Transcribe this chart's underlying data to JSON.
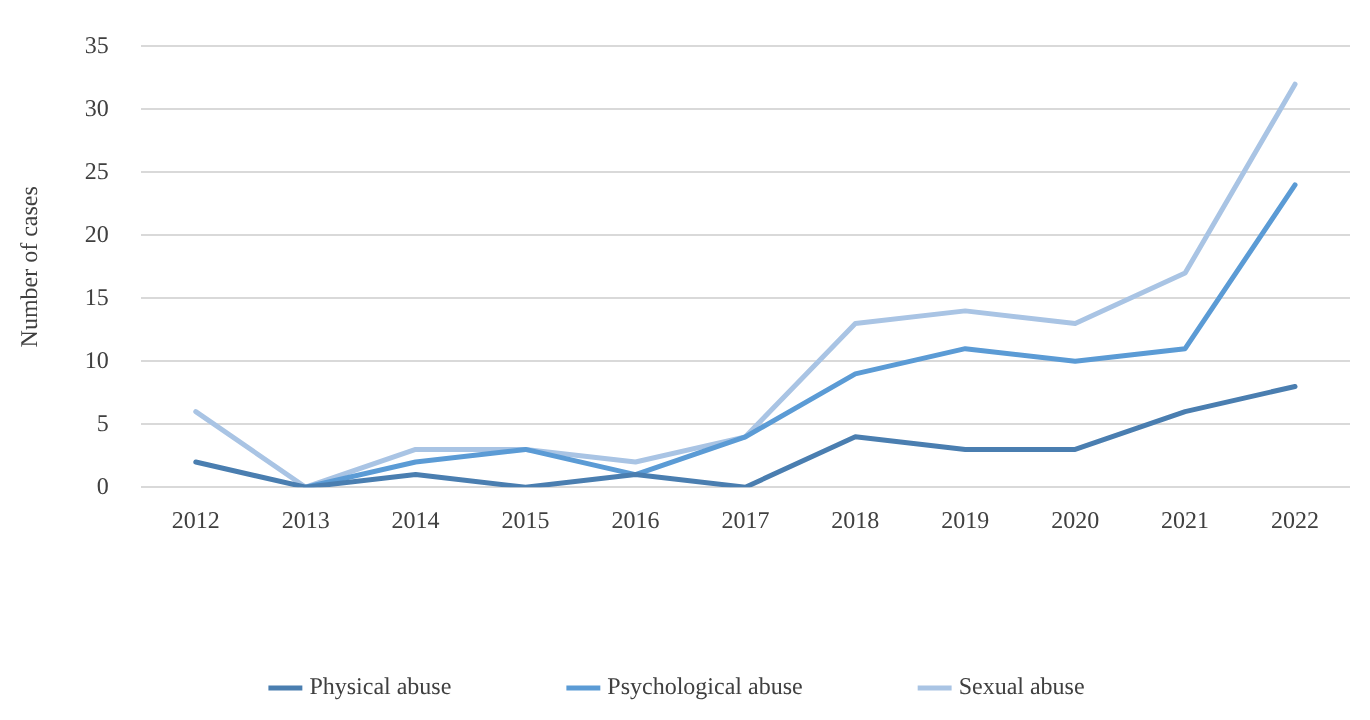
{
  "chart_data": {
    "type": "line",
    "ylabel": "Number of cases",
    "categories": [
      "2012",
      "2013",
      "2014",
      "2015",
      "2016",
      "2017",
      "2018",
      "2019",
      "2020",
      "2021",
      "2022"
    ],
    "series": [
      {
        "name": "Physical abuse",
        "color": "#4a7eb0",
        "values": [
          2,
          0,
          1,
          0,
          1,
          0,
          4,
          3,
          3,
          6,
          8
        ]
      },
      {
        "name": "Psychological abuse",
        "color": "#5b9bd5",
        "values": [
          null,
          0,
          2,
          3,
          1,
          4,
          9,
          11,
          10,
          11,
          24
        ]
      },
      {
        "name": "Sexual abuse",
        "color": "#a9c4e4",
        "values": [
          6,
          0,
          3,
          3,
          2,
          4,
          13,
          14,
          13,
          17,
          32
        ]
      }
    ],
    "ylim": [
      0,
      35
    ],
    "yticks": [
      0,
      5,
      10,
      15,
      20,
      25,
      30,
      35
    ],
    "grid": "y",
    "legend": "bottom",
    "marker": "none",
    "line_style": "solid"
  }
}
